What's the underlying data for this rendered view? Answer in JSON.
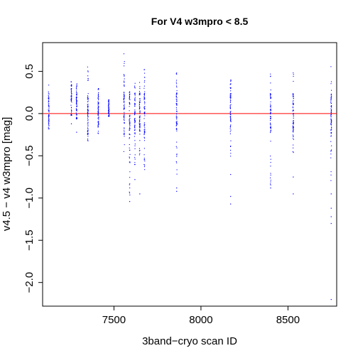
{
  "chart_data": {
    "type": "scatter",
    "title": "For V4 w3mpro < 8.5",
    "xlabel": "3band−cryo scan ID",
    "ylabel": "v4.5 − v4 w3mpro [mag]",
    "xlim": [
      7090,
      8780
    ],
    "ylim": [
      -2.28,
      0.84
    ],
    "x_ticks": [
      7500,
      8000,
      8500
    ],
    "y_ticks": [
      -2.0,
      -1.5,
      -1.0,
      -0.5,
      0.0,
      0.5
    ],
    "x_tick_labels": [
      "7500",
      "8000",
      "8500"
    ],
    "y_tick_labels": [
      "−2.0",
      "−1.5",
      "−1.0",
      "−0.5",
      "0.0",
      "0.5"
    ],
    "reference_line": {
      "y": 0.0,
      "color": "#ff0000"
    },
    "point_color": "#0000ff",
    "grid": false,
    "legend": "none",
    "clusters": [
      {
        "x": 7125,
        "ymin": -0.18,
        "ymax": 0.34,
        "outliers": []
      },
      {
        "x": 7255,
        "ymin": -0.02,
        "ymax": 0.42,
        "outliers": [
          -0.12
        ]
      },
      {
        "x": 7285,
        "ymin": -0.06,
        "ymax": 0.37,
        "outliers": [
          -0.22
        ]
      },
      {
        "x": 7350,
        "ymin": -0.38,
        "ymax": 0.66,
        "outliers": []
      },
      {
        "x": 7410,
        "ymin": -0.24,
        "ymax": 0.32,
        "outliers": []
      },
      {
        "x": 7470,
        "ymin": -0.03,
        "ymax": 0.16,
        "outliers": []
      },
      {
        "x": 7558,
        "ymin": -0.47,
        "ymax": 0.73,
        "outliers": []
      },
      {
        "x": 7590,
        "ymin": -0.98,
        "ymax": 0.32,
        "outliers": [
          -1.04
        ]
      },
      {
        "x": 7620,
        "ymin": -0.62,
        "ymax": 0.38,
        "outliers": [
          -0.78
        ]
      },
      {
        "x": 7648,
        "ymin": -0.52,
        "ymax": 0.38,
        "outliers": [
          -0.95
        ]
      },
      {
        "x": 7675,
        "ymin": -0.68,
        "ymax": 0.54,
        "outliers": []
      },
      {
        "x": 7860,
        "ymin": -0.72,
        "ymax": 0.5,
        "outliers": [
          -0.88,
          -0.92
        ]
      },
      {
        "x": 8170,
        "ymin": -0.52,
        "ymax": 0.44,
        "outliers": [
          -0.72,
          -0.98,
          -1.07
        ]
      },
      {
        "x": 8400,
        "ymin": -0.85,
        "ymax": 0.48,
        "outliers": [
          -0.88
        ]
      },
      {
        "x": 8530,
        "ymin": -0.5,
        "ymax": 0.54,
        "outliers": [
          -0.75,
          -0.95
        ]
      },
      {
        "x": 8748,
        "ymin": -0.8,
        "ymax": 0.56,
        "outliers": [
          -0.95,
          -1.12,
          -1.22,
          -1.3,
          -2.2
        ]
      }
    ]
  }
}
